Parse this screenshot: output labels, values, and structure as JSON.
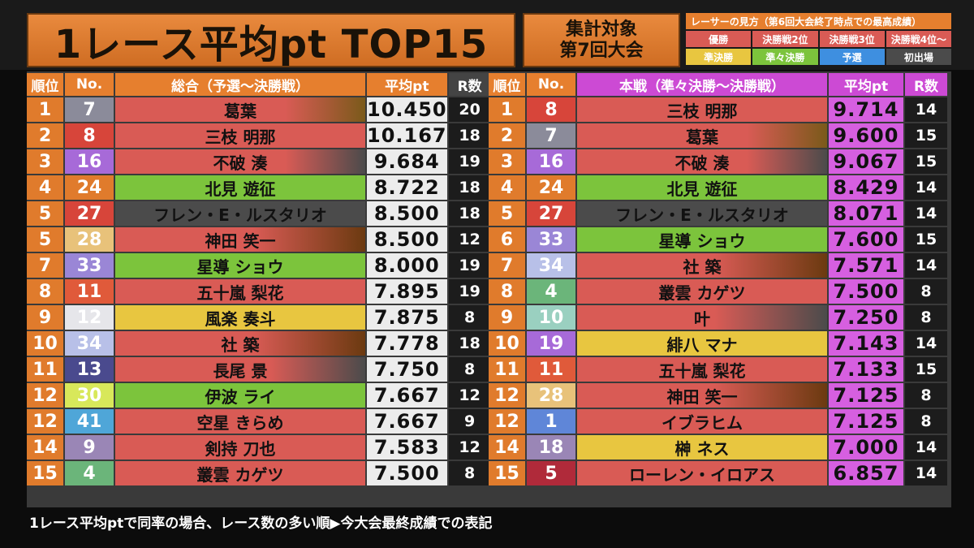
{
  "title": "1レース平均pt TOP15",
  "target": {
    "line1": "集計対象",
    "line2": "第7回大会"
  },
  "legend": {
    "title": "レーサーの見方（第6回大会終了時点での最高成績）",
    "items": [
      {
        "label": "優勝",
        "color": "#d95b55"
      },
      {
        "label": "決勝戦2位",
        "color": "#d95b55"
      },
      {
        "label": "決勝戦3位",
        "color": "#d95b55"
      },
      {
        "label": "決勝戦4位〜",
        "color": "#d95b55"
      },
      {
        "label": "準決勝",
        "color": "#e8c640"
      },
      {
        "label": "準々決勝",
        "color": "#7cc43c"
      },
      {
        "label": "予選",
        "color": "#3e8fe0"
      },
      {
        "label": "初出場",
        "color": "#4b4b4b"
      }
    ]
  },
  "left": {
    "headers": {
      "rank": "順位",
      "no": "No.",
      "name": "総合（予選〜決勝戦）",
      "avg": "平均pt",
      "r": "R数"
    },
    "rows": [
      {
        "rank": "1",
        "no": "7",
        "no_color": "#8b8b9a",
        "name": "葛葉",
        "name_bg": "linear-gradient(90deg,#d95b55 68%,#7a5a1a)",
        "avg": "10.450",
        "r": "20"
      },
      {
        "rank": "2",
        "no": "8",
        "no_color": "#d7453a",
        "name": "三枝 明那",
        "name_bg": "#d95b55",
        "avg": "10.167",
        "r": "18"
      },
      {
        "rank": "3",
        "no": "16",
        "no_color": "#a76ad8",
        "name": "不破 湊",
        "name_bg": "linear-gradient(90deg,#d95b55 68%,#4b4b4b)",
        "avg": "9.684",
        "r": "19"
      },
      {
        "rank": "4",
        "no": "24",
        "no_color": "#e07b2c",
        "name": "北見 遊征",
        "name_bg": "#7cc43c",
        "avg": "8.722",
        "r": "18"
      },
      {
        "rank": "5",
        "no": "27",
        "no_color": "#d7453a",
        "name": "フレン・E・ルスタリオ",
        "name_bg": "#4b4b4b",
        "avg": "8.500",
        "r": "18"
      },
      {
        "rank": "5",
        "no": "28",
        "no_color": "#e8c27a",
        "name": "神田 笑一",
        "name_bg": "linear-gradient(90deg,#d95b55 55%,#6b3a10)",
        "avg": "8.500",
        "r": "12"
      },
      {
        "rank": "7",
        "no": "33",
        "no_color": "#9a86d6",
        "name": "星導 ショウ",
        "name_bg": "#7cc43c",
        "avg": "8.000",
        "r": "19"
      },
      {
        "rank": "8",
        "no": "11",
        "no_color": "#e05a3a",
        "name": "五十嵐 梨花",
        "name_bg": "#d95b55",
        "avg": "7.895",
        "r": "19"
      },
      {
        "rank": "9",
        "no": "12",
        "no_color": "#e6e6ea",
        "name": "風楽 奏斗",
        "name_bg": "#e8c640",
        "avg": "7.875",
        "r": "8"
      },
      {
        "rank": "10",
        "no": "34",
        "no_color": "#b8c0e8",
        "name": "社 築",
        "name_bg": "linear-gradient(90deg,#d95b55 55%,#6b3a10)",
        "avg": "7.778",
        "r": "18"
      },
      {
        "rank": "11",
        "no": "13",
        "no_color": "#4a4a8e",
        "name": "長尾 景",
        "name_bg": "linear-gradient(90deg,#d95b55 62%,#4b4b4b)",
        "avg": "7.750",
        "r": "8"
      },
      {
        "rank": "12",
        "no": "30",
        "no_color": "#d8e85a",
        "name": "伊波 ライ",
        "name_bg": "#7cc43c",
        "avg": "7.667",
        "r": "12"
      },
      {
        "rank": "12",
        "no": "41",
        "no_color": "#4fa6d8",
        "name": "空星 きらめ",
        "name_bg": "#d95b55",
        "avg": "7.667",
        "r": "9"
      },
      {
        "rank": "14",
        "no": "9",
        "no_color": "#9a86b6",
        "name": "剣持 刀也",
        "name_bg": "#d95b55",
        "avg": "7.583",
        "r": "12"
      },
      {
        "rank": "15",
        "no": "4",
        "no_color": "#6bb57a",
        "name": "叢雲 カゲツ",
        "name_bg": "#d95b55",
        "avg": "7.500",
        "r": "8"
      }
    ]
  },
  "right": {
    "headers": {
      "rank": "順位",
      "no": "No.",
      "name": "本戦（準々決勝〜決勝戦）",
      "avg": "平均pt",
      "r": "R数"
    },
    "rows": [
      {
        "rank": "1",
        "no": "8",
        "no_color": "#d7453a",
        "name": "三枝 明那",
        "name_bg": "#d95b55",
        "avg": "9.714",
        "r": "14"
      },
      {
        "rank": "2",
        "no": "7",
        "no_color": "#8b8b9a",
        "name": "葛葉",
        "name_bg": "linear-gradient(90deg,#d95b55 68%,#7a5a1a)",
        "avg": "9.600",
        "r": "15"
      },
      {
        "rank": "3",
        "no": "16",
        "no_color": "#a76ad8",
        "name": "不破 湊",
        "name_bg": "linear-gradient(90deg,#d95b55 68%,#4b4b4b)",
        "avg": "9.067",
        "r": "15"
      },
      {
        "rank": "4",
        "no": "24",
        "no_color": "#e07b2c",
        "name": "北見 遊征",
        "name_bg": "#7cc43c",
        "avg": "8.429",
        "r": "14"
      },
      {
        "rank": "5",
        "no": "27",
        "no_color": "#d7453a",
        "name": "フレン・E・ルスタリオ",
        "name_bg": "#4b4b4b",
        "avg": "8.071",
        "r": "14"
      },
      {
        "rank": "6",
        "no": "33",
        "no_color": "#9a86d6",
        "name": "星導 ショウ",
        "name_bg": "#7cc43c",
        "avg": "7.600",
        "r": "15"
      },
      {
        "rank": "7",
        "no": "34",
        "no_color": "#b8c0e8",
        "name": "社 築",
        "name_bg": "linear-gradient(90deg,#d95b55 55%,#6b3a10)",
        "avg": "7.571",
        "r": "14"
      },
      {
        "rank": "8",
        "no": "4",
        "no_color": "#6bb57a",
        "name": "叢雲 カゲツ",
        "name_bg": "#d95b55",
        "avg": "7.500",
        "r": "8"
      },
      {
        "rank": "9",
        "no": "10",
        "no_color": "#9ad0c0",
        "name": "叶",
        "name_bg": "linear-gradient(90deg,#d95b55 55%,#4b4b4b)",
        "avg": "7.250",
        "r": "8"
      },
      {
        "rank": "10",
        "no": "19",
        "no_color": "#a76ad8",
        "name": "緋八 マナ",
        "name_bg": "#e8c640",
        "avg": "7.143",
        "r": "14"
      },
      {
        "rank": "11",
        "no": "11",
        "no_color": "#e05a3a",
        "name": "五十嵐 梨花",
        "name_bg": "#d95b55",
        "avg": "7.133",
        "r": "15"
      },
      {
        "rank": "12",
        "no": "28",
        "no_color": "#e8c27a",
        "name": "神田 笑一",
        "name_bg": "linear-gradient(90deg,#d95b55 55%,#6b3a10)",
        "avg": "7.125",
        "r": "8"
      },
      {
        "rank": "12",
        "no": "1",
        "no_color": "#5f86d8",
        "name": "イブラヒム",
        "name_bg": "#d95b55",
        "avg": "7.125",
        "r": "8"
      },
      {
        "rank": "14",
        "no": "18",
        "no_color": "#9a86b6",
        "name": "榊 ネス",
        "name_bg": "#e8c640",
        "avg": "7.000",
        "r": "14"
      },
      {
        "rank": "15",
        "no": "5",
        "no_color": "#b02a3a",
        "name": "ローレン・イロアス",
        "name_bg": "#d95b55",
        "avg": "6.857",
        "r": "14"
      }
    ]
  },
  "footer": "1レース平均ptで同率の場合、レース数の多い順▶今大会最終成績での表記"
}
